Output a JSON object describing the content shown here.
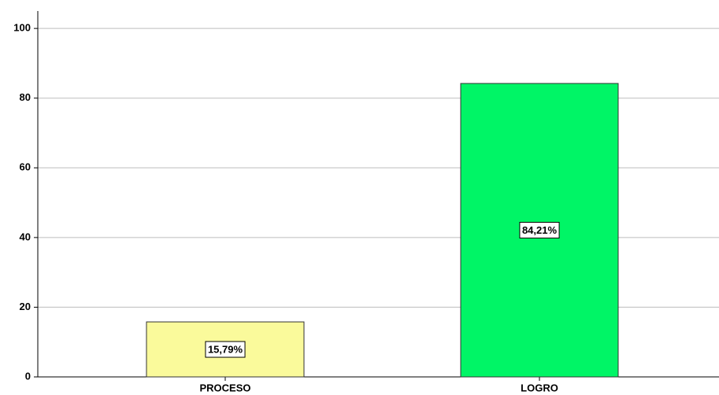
{
  "chart_data": {
    "type": "bar",
    "categories": [
      "PROCESO",
      "LOGRO"
    ],
    "values": [
      15.79,
      84.21
    ],
    "value_labels": [
      "15,79%",
      "84,21%"
    ],
    "colors": [
      "#fafa9b",
      "#00f566"
    ],
    "ylim": [
      0,
      105
    ],
    "yticks": [
      0,
      20,
      40,
      60,
      80,
      100
    ],
    "grid": true
  }
}
